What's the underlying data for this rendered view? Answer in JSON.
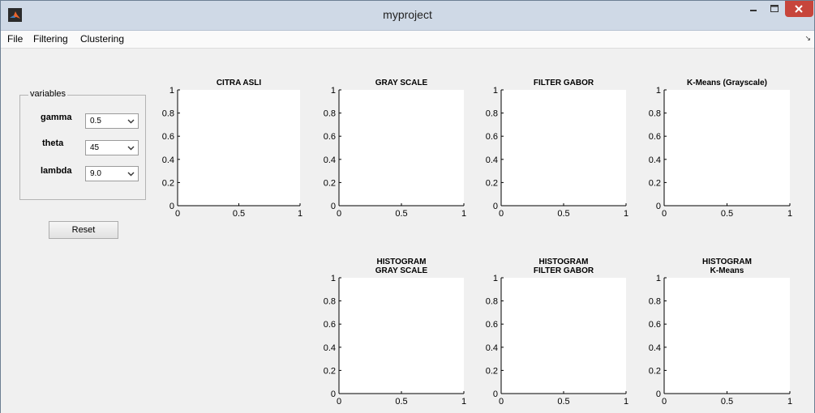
{
  "window": {
    "title": "myproject"
  },
  "menu": {
    "items": [
      "File",
      "Filtering",
      "Clustering"
    ]
  },
  "panel": {
    "title": "variables",
    "params": [
      {
        "label": "gamma",
        "value": "0.5"
      },
      {
        "label": "theta",
        "value": "45"
      },
      {
        "label": "lambda",
        "value": "9.0"
      }
    ],
    "reset_label": "Reset"
  },
  "chart_data": [
    {
      "type": "line",
      "title": [
        "CITRA ASLI"
      ],
      "xlim": [
        0,
        1
      ],
      "ylim": [
        0,
        1
      ],
      "xticks": [
        "0",
        "0.5",
        "1"
      ],
      "yticks": [
        "0",
        "0.2",
        "0.4",
        "0.6",
        "0.8",
        "1"
      ],
      "series": []
    },
    {
      "type": "line",
      "title": [
        "GRAY SCALE"
      ],
      "xlim": [
        0,
        1
      ],
      "ylim": [
        0,
        1
      ],
      "xticks": [
        "0",
        "0.5",
        "1"
      ],
      "yticks": [
        "0",
        "0.2",
        "0.4",
        "0.6",
        "0.8",
        "1"
      ],
      "series": []
    },
    {
      "type": "line",
      "title": [
        "FILTER GABOR"
      ],
      "xlim": [
        0,
        1
      ],
      "ylim": [
        0,
        1
      ],
      "xticks": [
        "0",
        "0.5",
        "1"
      ],
      "yticks": [
        "0",
        "0.2",
        "0.4",
        "0.6",
        "0.8",
        "1"
      ],
      "series": []
    },
    {
      "type": "line",
      "title": [
        "K-Means (Grayscale)"
      ],
      "xlim": [
        0,
        1
      ],
      "ylim": [
        0,
        1
      ],
      "xticks": [
        "0",
        "0.5",
        "1"
      ],
      "yticks": [
        "0",
        "0.2",
        "0.4",
        "0.6",
        "0.8",
        "1"
      ],
      "series": []
    },
    {
      "type": "line",
      "title": [
        "HISTOGRAM",
        "GRAY SCALE"
      ],
      "xlim": [
        0,
        1
      ],
      "ylim": [
        0,
        1
      ],
      "xticks": [
        "0",
        "0.5",
        "1"
      ],
      "yticks": [
        "0",
        "0.2",
        "0.4",
        "0.6",
        "0.8",
        "1"
      ],
      "series": []
    },
    {
      "type": "line",
      "title": [
        "HISTOGRAM",
        "FILTER GABOR"
      ],
      "xlim": [
        0,
        1
      ],
      "ylim": [
        0,
        1
      ],
      "xticks": [
        "0",
        "0.5",
        "1"
      ],
      "yticks": [
        "0",
        "0.2",
        "0.4",
        "0.6",
        "0.8",
        "1"
      ],
      "series": []
    },
    {
      "type": "line",
      "title": [
        "HISTOGRAM",
        "K-Means"
      ],
      "xlim": [
        0,
        1
      ],
      "ylim": [
        0,
        1
      ],
      "xticks": [
        "0",
        "0.5",
        "1"
      ],
      "yticks": [
        "0",
        "0.2",
        "0.4",
        "0.6",
        "0.8",
        "1"
      ],
      "series": []
    }
  ]
}
